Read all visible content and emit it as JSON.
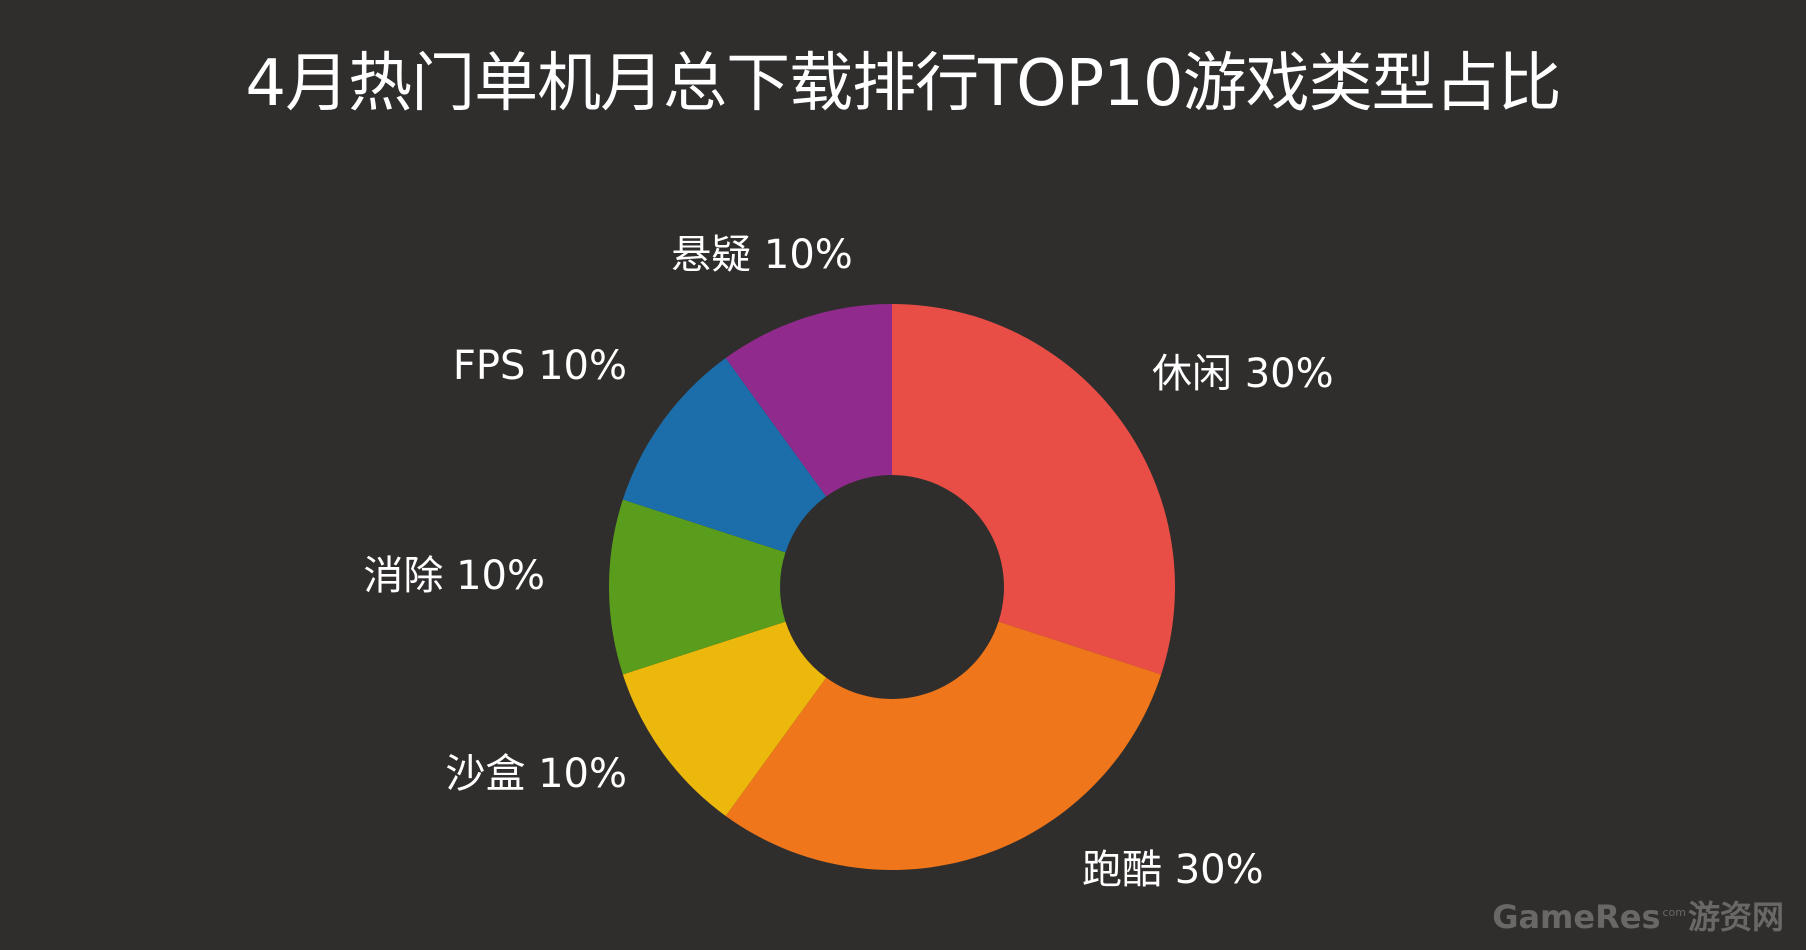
{
  "chart_data": {
    "type": "pie",
    "variant": "donut",
    "title": "4月热门单机月总下载排行TOP10游戏类型占比",
    "slices": [
      {
        "label": "休闲",
        "value": 30,
        "display": "休闲 30%",
        "color": "#e84e45"
      },
      {
        "label": "跑酷",
        "value": 30,
        "display": "跑酷 30%",
        "color": "#ef761b"
      },
      {
        "label": "沙盒",
        "value": 10,
        "display": "沙盒 10%",
        "color": "#ecb80c"
      },
      {
        "label": "消除",
        "value": 10,
        "display": "消除 10%",
        "color": "#5a9c1b"
      },
      {
        "label": "FPS",
        "value": 10,
        "display": "FPS 10%",
        "color": "#1b6eaa"
      },
      {
        "label": "悬疑",
        "value": 10,
        "display": "悬疑 10%",
        "color": "#902a8c"
      }
    ]
  },
  "watermark": {
    "brand": "GameRes",
    "suffix": "com",
    "chinese": "游资网",
    "color": "#6a6867"
  }
}
